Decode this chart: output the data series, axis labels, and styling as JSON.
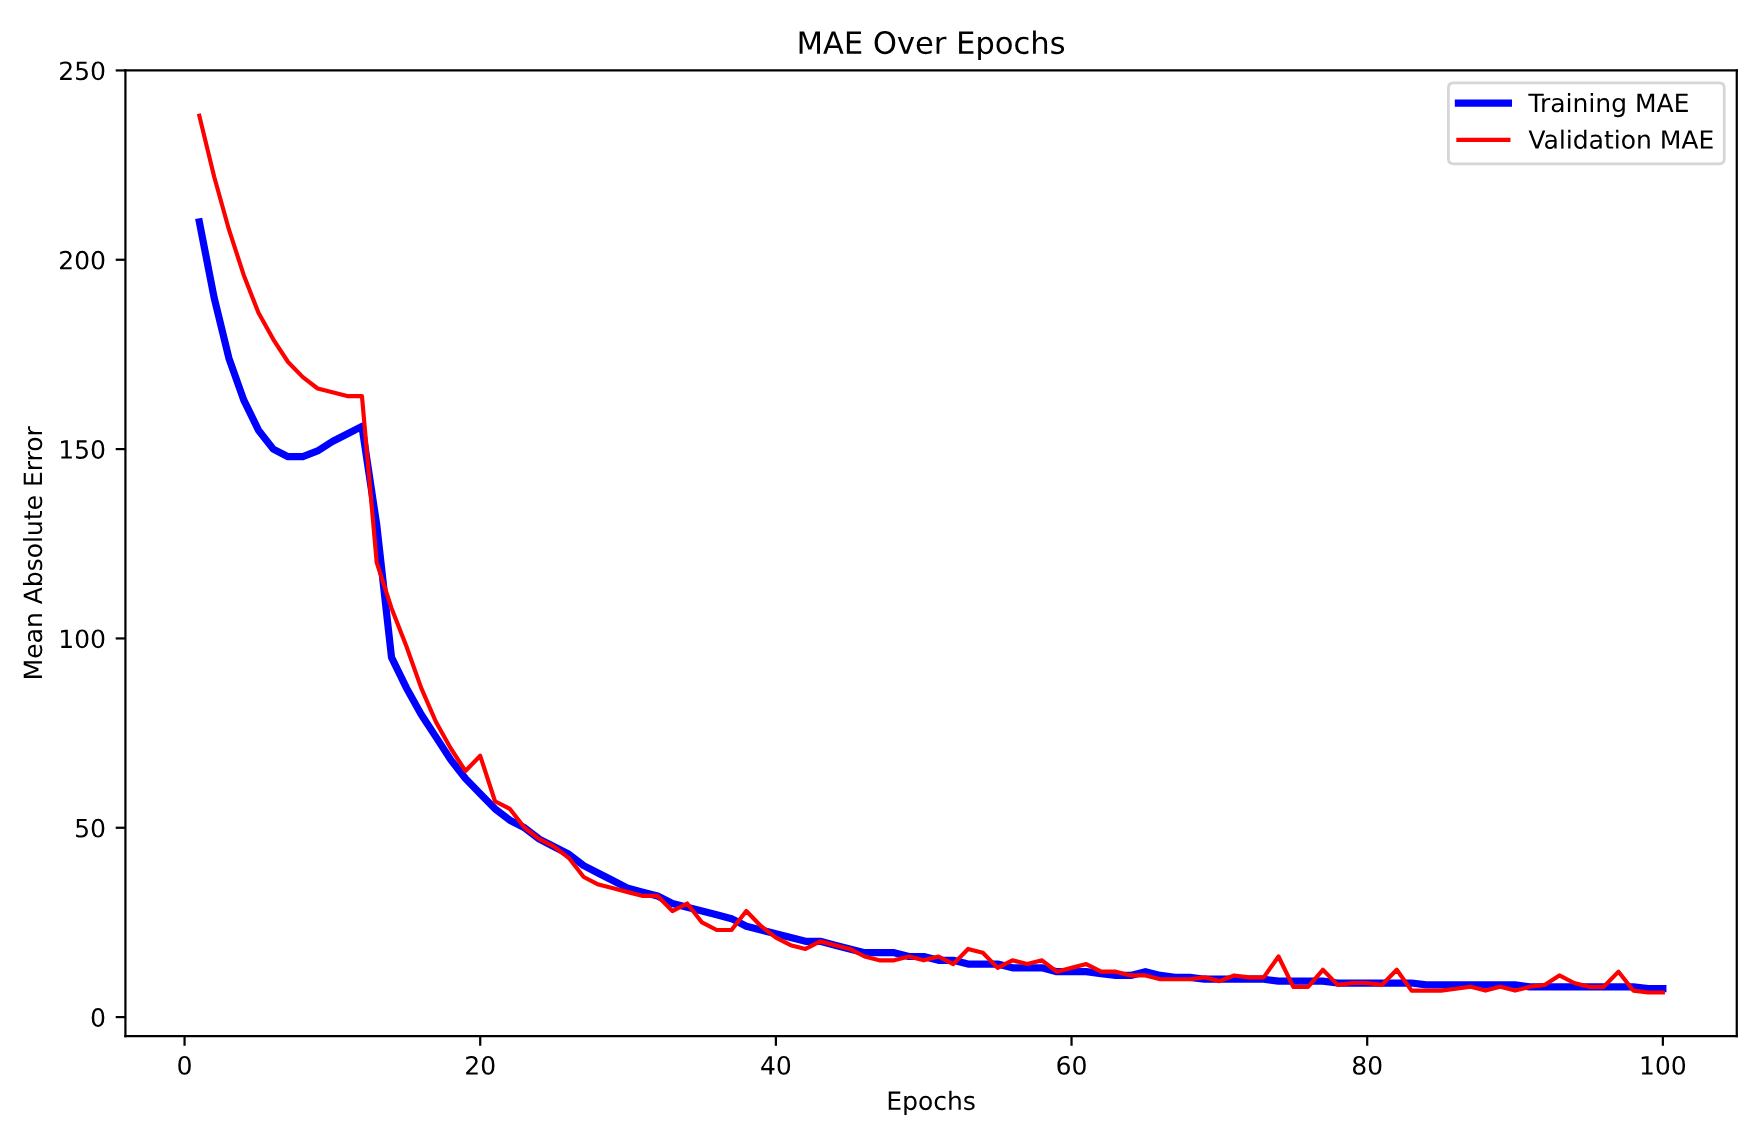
{
  "chart_data": {
    "type": "line",
    "title": "MAE Over Epochs",
    "xlabel": "Epochs",
    "ylabel": "Mean Absolute Error",
    "x": [
      1,
      2,
      3,
      4,
      5,
      6,
      7,
      8,
      9,
      10,
      11,
      12,
      13,
      14,
      15,
      16,
      17,
      18,
      19,
      20,
      21,
      22,
      23,
      24,
      25,
      26,
      27,
      28,
      29,
      30,
      31,
      32,
      33,
      34,
      35,
      36,
      37,
      38,
      39,
      40,
      41,
      42,
      43,
      44,
      45,
      46,
      47,
      48,
      49,
      50,
      51,
      52,
      53,
      54,
      55,
      56,
      57,
      58,
      59,
      60,
      61,
      62,
      63,
      64,
      65,
      66,
      67,
      68,
      69,
      70,
      71,
      72,
      73,
      74,
      75,
      76,
      77,
      78,
      79,
      80,
      81,
      82,
      83,
      84,
      85,
      86,
      87,
      88,
      89,
      90,
      91,
      92,
      93,
      94,
      95,
      96,
      97,
      98,
      99,
      100
    ],
    "series": [
      {
        "name": "Training MAE",
        "color": "#0000ff",
        "values": [
          210,
          190,
          174,
          163,
          155,
          150,
          148,
          148,
          149.5,
          152,
          154,
          156,
          130,
          95,
          87,
          80,
          74,
          68,
          63,
          59,
          55,
          52,
          50,
          47,
          45,
          43,
          40,
          38,
          36,
          34,
          33,
          32,
          30,
          29,
          28,
          27,
          26,
          24,
          23,
          22,
          21,
          20,
          20,
          19,
          18,
          17,
          17,
          17,
          16,
          16,
          15,
          15,
          14,
          14,
          14,
          13,
          13,
          13,
          12,
          12,
          12,
          11.5,
          11,
          11,
          12,
          11,
          10.5,
          10.5,
          10,
          10,
          10,
          10,
          10,
          9.5,
          9.5,
          9.5,
          9.5,
          9,
          9,
          9,
          9,
          9,
          9,
          8.5,
          8.5,
          8.5,
          8.5,
          8.5,
          8.5,
          8.5,
          8,
          8,
          8,
          8,
          8,
          8,
          8,
          8,
          7.5,
          7.5
        ]
      },
      {
        "name": "Validation MAE",
        "color": "#ff0000",
        "values": [
          238,
          222,
          208,
          196,
          186,
          179,
          173,
          169,
          166,
          165,
          164,
          164,
          120,
          108,
          98,
          87,
          78,
          71,
          65,
          69,
          57,
          55,
          50,
          47,
          45,
          42,
          37,
          35,
          34,
          33,
          32,
          32,
          28,
          30,
          25,
          23,
          23,
          28,
          24,
          21,
          19,
          18,
          20,
          19,
          18,
          16,
          15,
          15,
          16,
          15,
          16,
          14,
          18,
          17,
          13,
          15,
          14,
          15,
          12,
          13,
          14,
          12,
          12,
          11,
          11,
          10,
          10,
          10,
          10.5,
          9.5,
          11,
          10.5,
          10.5,
          16,
          8,
          8,
          12.5,
          8.5,
          9,
          9,
          8.5,
          12.5,
          7,
          7,
          7,
          7.5,
          8,
          7,
          8,
          7,
          8,
          8.5,
          11,
          9,
          8,
          8,
          12,
          7,
          6.5,
          6.5
        ]
      }
    ],
    "xlim": [
      -4,
      105
    ],
    "ylim": [
      -5,
      250
    ],
    "xticks": [
      0,
      20,
      40,
      60,
      80,
      100
    ],
    "yticks": [
      0,
      50,
      100,
      150,
      200,
      250
    ],
    "legend": "top right",
    "grid": false
  }
}
